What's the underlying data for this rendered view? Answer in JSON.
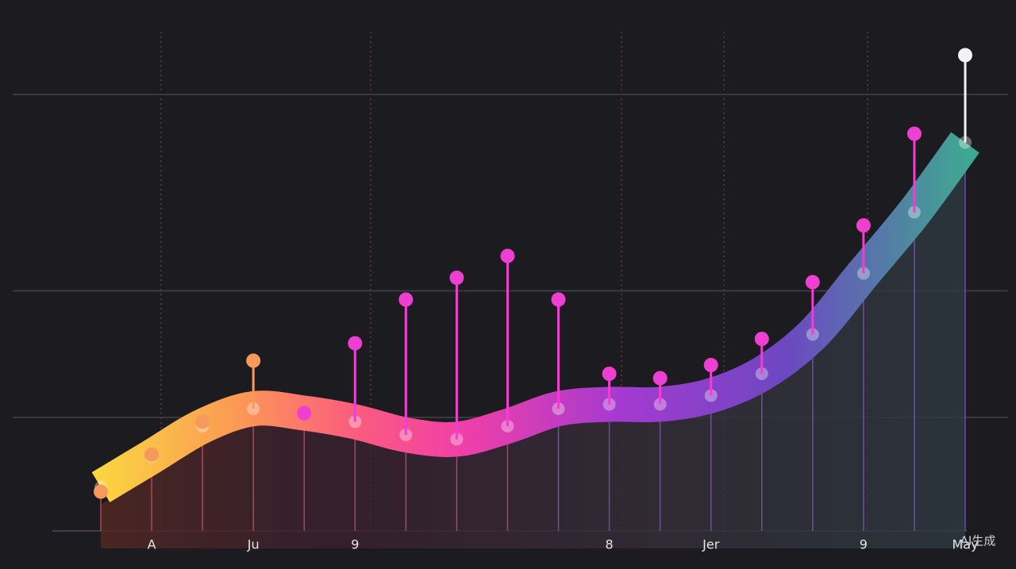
{
  "chart_data": {
    "type": "line",
    "categories": [
      null,
      "A",
      null,
      "Ju",
      null,
      "9",
      null,
      null,
      null,
      null,
      "8",
      null,
      "Jer",
      null,
      null,
      "9",
      null,
      "May"
    ],
    "series": [
      {
        "color": "#a040e0",
        "values": [
          10,
          17,
          24,
          28,
          27,
          25,
          22,
          21,
          24,
          28,
          29,
          29,
          31,
          36,
          45,
          59,
          73,
          89
        ]
      },
      {
        "color": "#ee3fd2",
        "values": [
          9,
          17.5,
          25,
          39,
          27,
          43,
          53,
          58,
          63,
          53,
          36,
          35,
          38,
          44,
          57,
          70,
          91,
          109
        ]
      }
    ],
    "ylim": [
      0,
      110
    ],
    "yticks": [
      26,
      55,
      100
    ],
    "grid": true,
    "watermark": "AI生成"
  }
}
